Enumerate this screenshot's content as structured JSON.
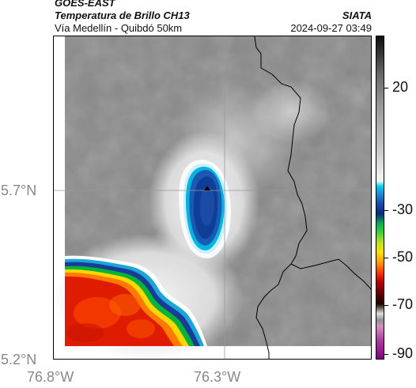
{
  "header": {
    "satellite": "GOES-EAST",
    "product": "Temperatura de Brillo CH13",
    "region": "Vía Medellín - Quibdó 50km",
    "org": "SIATA",
    "datetime": "2024-09-27 03:49"
  },
  "map": {
    "lat_labels": [
      "5.7°N",
      "5.2°N"
    ],
    "lon_labels": [
      "76.8°W",
      "76.3°W"
    ],
    "marker": "station-marker-icon"
  },
  "colorbar": {
    "labels": [
      "20",
      "-30",
      "-50",
      "-70",
      "-90"
    ]
  }
}
